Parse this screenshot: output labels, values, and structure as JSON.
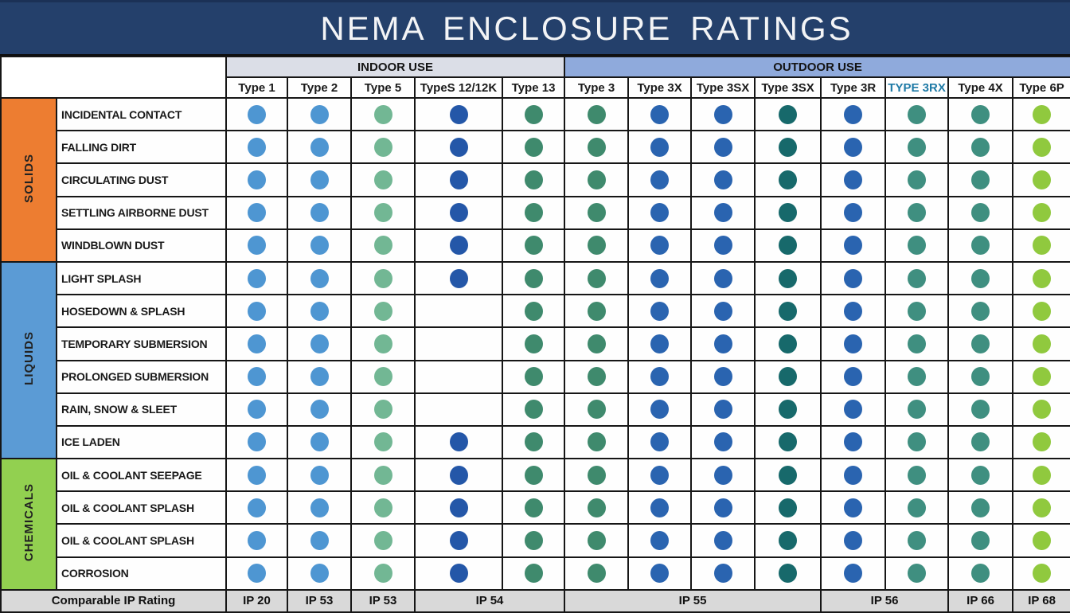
{
  "title": "NEMA ENCLOSURE RATINGS",
  "colors": {
    "title_bar": "#24406B",
    "grid_line": "#161616",
    "ip_row_bg": "#D9D9D9",
    "indoor_band": "#DBDEE7",
    "outdoor_band": "#8FAADC",
    "highlight_header_text": "#1E7AA6"
  },
  "chart_data": {
    "type": "table",
    "title": "NEMA ENCLOSURE RATINGS",
    "column_groups": [
      {
        "label": "INDOOR USE",
        "span": 5,
        "bg": "#DBDEE7"
      },
      {
        "label": "OUTDOOR USE",
        "span": 8,
        "bg": "#8FAADC"
      }
    ],
    "columns": [
      "Type 1",
      "Type 2",
      "Type 5",
      "TypeS 12/12K",
      "Type 13",
      "Type 3",
      "Type 3X",
      "Type 3SX",
      "Type 3SX",
      "Type 3R",
      "TYPE 3RX",
      "Type 4X",
      "Type 6P"
    ],
    "highlighted_column_index": 10,
    "highlighted_column_color": "#1E7AA6",
    "dot_colors": [
      "#4E96D2",
      "#4E96D2",
      "#72B794",
      "#2457A8",
      "#3F8A6D",
      "#3F8A6D",
      "#2A64B0",
      "#2A64B0",
      "#17696B",
      "#2A64B0",
      "#3F8F80",
      "#3F8F80",
      "#90C93E"
    ],
    "categories": [
      {
        "label": "SOLIDS",
        "color": "#ED7D31",
        "row_count": 5
      },
      {
        "label": "LIQUIDS",
        "color": "#5B9BD5",
        "row_count": 6
      },
      {
        "label": "CHEMICALS",
        "color": "#92D050",
        "row_count": 4
      }
    ],
    "rows": [
      {
        "label": "INCIDENTAL CONTACT",
        "category": "SOLIDS",
        "dots": [
          1,
          1,
          1,
          1,
          1,
          1,
          1,
          1,
          1,
          1,
          1,
          1,
          1
        ]
      },
      {
        "label": "FALLING DIRT",
        "category": "SOLIDS",
        "dots": [
          1,
          1,
          1,
          1,
          1,
          1,
          1,
          1,
          1,
          1,
          1,
          1,
          1
        ]
      },
      {
        "label": "CIRCULATING DUST",
        "category": "SOLIDS",
        "dots": [
          1,
          1,
          1,
          1,
          1,
          1,
          1,
          1,
          1,
          1,
          1,
          1,
          1
        ]
      },
      {
        "label": "SETTLING AIRBORNE DUST",
        "category": "SOLIDS",
        "dots": [
          1,
          1,
          1,
          1,
          1,
          1,
          1,
          1,
          1,
          1,
          1,
          1,
          1
        ]
      },
      {
        "label": "WINDBLOWN DUST",
        "category": "SOLIDS",
        "dots": [
          1,
          1,
          1,
          1,
          1,
          1,
          1,
          1,
          1,
          1,
          1,
          1,
          1
        ]
      },
      {
        "label": "LIGHT SPLASH",
        "category": "LIQUIDS",
        "dots": [
          1,
          1,
          1,
          1,
          1,
          1,
          1,
          1,
          1,
          1,
          1,
          1,
          1
        ]
      },
      {
        "label": "HOSEDOWN & SPLASH",
        "category": "LIQUIDS",
        "dots": [
          1,
          1,
          1,
          0,
          1,
          1,
          1,
          1,
          1,
          1,
          1,
          1,
          1
        ]
      },
      {
        "label": "TEMPORARY SUBMERSION",
        "category": "LIQUIDS",
        "dots": [
          1,
          1,
          1,
          0,
          1,
          1,
          1,
          1,
          1,
          1,
          1,
          1,
          1
        ]
      },
      {
        "label": "PROLONGED SUBMERSION",
        "category": "LIQUIDS",
        "dots": [
          1,
          1,
          1,
          0,
          1,
          1,
          1,
          1,
          1,
          1,
          1,
          1,
          1
        ]
      },
      {
        "label": "RAIN, SNOW & SLEET",
        "category": "LIQUIDS",
        "dots": [
          1,
          1,
          1,
          0,
          1,
          1,
          1,
          1,
          1,
          1,
          1,
          1,
          1
        ]
      },
      {
        "label": "ICE LADEN",
        "category": "LIQUIDS",
        "dots": [
          1,
          1,
          1,
          1,
          1,
          1,
          1,
          1,
          1,
          1,
          1,
          1,
          1
        ]
      },
      {
        "label": "OIL & COOLANT SEEPAGE",
        "category": "CHEMICALS",
        "dots": [
          1,
          1,
          1,
          1,
          1,
          1,
          1,
          1,
          1,
          1,
          1,
          1,
          1
        ]
      },
      {
        "label": "OIL & COOLANT SPLASH",
        "category": "CHEMICALS",
        "dots": [
          1,
          1,
          1,
          1,
          1,
          1,
          1,
          1,
          1,
          1,
          1,
          1,
          1
        ]
      },
      {
        "label": "OIL & COOLANT SPLASH",
        "category": "CHEMICALS",
        "dots": [
          1,
          1,
          1,
          1,
          1,
          1,
          1,
          1,
          1,
          1,
          1,
          1,
          1
        ]
      },
      {
        "label": "CORROSION",
        "category": "CHEMICALS",
        "dots": [
          1,
          1,
          1,
          1,
          1,
          1,
          1,
          1,
          1,
          1,
          1,
          1,
          1
        ]
      }
    ],
    "ip_row": {
      "label": "Comparable IP Rating",
      "cells": [
        {
          "text": "IP 20",
          "span": 1
        },
        {
          "text": "IP 53",
          "span": 1
        },
        {
          "text": "IP 53",
          "span": 1
        },
        {
          "text": "IP 54",
          "span": 2
        },
        {
          "text": "IP 55",
          "span": 4
        },
        {
          "text": "IP 56",
          "span": 2
        },
        {
          "text": "IP 66",
          "span": 1
        },
        {
          "text": "IP 68",
          "span": 1
        }
      ]
    }
  }
}
